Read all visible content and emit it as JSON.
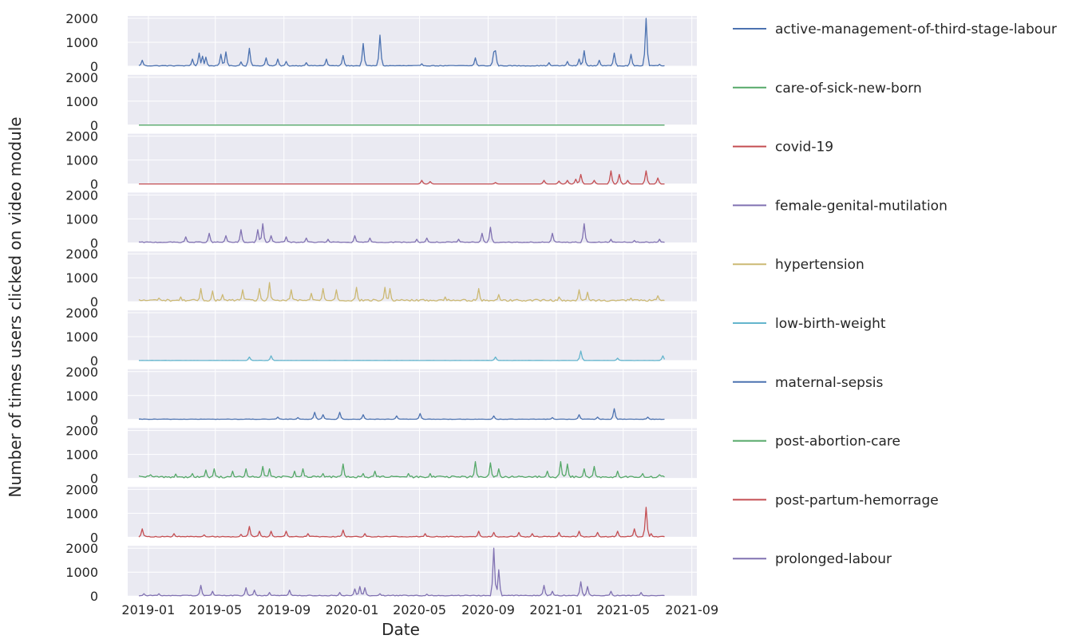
{
  "chart_data": {
    "type": "line",
    "layout": "small-multiples",
    "xlabel": "Date",
    "ylabel": "Number of times users clicked on video module",
    "xlim": [
      "2018-11-25",
      "2021-09-10"
    ],
    "ylim": [
      0,
      2100
    ],
    "y_ticks": [
      0,
      1000,
      2000
    ],
    "x_ticks": [
      "2019-01",
      "2019-05",
      "2019-09",
      "2020-01",
      "2020-05",
      "2020-09",
      "2021-01",
      "2021-05",
      "2021-09"
    ],
    "data_range": [
      "2018-12-15",
      "2021-07-15"
    ],
    "series": [
      {
        "name": "active-management-of-third-stage-labour",
        "color": "#4c72b0",
        "base": 20,
        "peaks": [
          [
            "2018-12-20",
            250
          ],
          [
            "2019-03-20",
            300
          ],
          [
            "2019-04-01",
            550
          ],
          [
            "2019-04-08",
            420
          ],
          [
            "2019-04-15",
            380
          ],
          [
            "2019-05-10",
            500
          ],
          [
            "2019-05-20",
            600
          ],
          [
            "2019-06-15",
            180
          ],
          [
            "2019-07-01",
            750
          ],
          [
            "2019-08-01",
            350
          ],
          [
            "2019-08-20",
            300
          ],
          [
            "2019-09-05",
            200
          ],
          [
            "2019-10-10",
            150
          ],
          [
            "2019-11-15",
            300
          ],
          [
            "2019-12-15",
            450
          ],
          [
            "2020-01-20",
            950
          ],
          [
            "2020-02-20",
            1300
          ],
          [
            "2020-05-05",
            100
          ],
          [
            "2020-08-10",
            350
          ],
          [
            "2020-09-10",
            600
          ],
          [
            "2020-09-15",
            650
          ],
          [
            "2020-12-20",
            150
          ],
          [
            "2021-01-20",
            200
          ],
          [
            "2021-02-10",
            300
          ],
          [
            "2021-02-20",
            650
          ],
          [
            "2021-03-20",
            250
          ],
          [
            "2021-04-15",
            550
          ],
          [
            "2021-05-15",
            500
          ],
          [
            "2021-06-10",
            2000
          ],
          [
            "2021-07-05",
            80
          ]
        ]
      },
      {
        "name": "care-of-sick-new-born",
        "color": "#55a868",
        "base": 0,
        "peaks": []
      },
      {
        "name": "covid-19",
        "color": "#c44e52",
        "base": 0,
        "active_from": "2020-04-20",
        "peaks": [
          [
            "2020-05-05",
            150
          ],
          [
            "2020-05-20",
            100
          ],
          [
            "2020-09-15",
            60
          ],
          [
            "2020-12-10",
            150
          ],
          [
            "2021-01-05",
            120
          ],
          [
            "2021-01-20",
            150
          ],
          [
            "2021-02-05",
            200
          ],
          [
            "2021-02-15",
            400
          ],
          [
            "2021-03-10",
            150
          ],
          [
            "2021-04-10",
            550
          ],
          [
            "2021-04-25",
            400
          ],
          [
            "2021-05-10",
            150
          ],
          [
            "2021-06-10",
            550
          ],
          [
            "2021-07-01",
            250
          ]
        ]
      },
      {
        "name": "female-genital-mutilation",
        "color": "#8172b2",
        "base": 25,
        "peaks": [
          [
            "2019-03-10",
            250
          ],
          [
            "2019-04-20",
            400
          ],
          [
            "2019-05-20",
            300
          ],
          [
            "2019-06-15",
            550
          ],
          [
            "2019-07-15",
            550
          ],
          [
            "2019-07-25",
            800
          ],
          [
            "2019-08-10",
            300
          ],
          [
            "2019-09-05",
            250
          ],
          [
            "2019-10-10",
            200
          ],
          [
            "2019-11-20",
            150
          ],
          [
            "2020-01-05",
            300
          ],
          [
            "2020-02-01",
            200
          ],
          [
            "2020-04-25",
            150
          ],
          [
            "2020-05-15",
            200
          ],
          [
            "2020-07-10",
            150
          ],
          [
            "2020-08-20",
            400
          ],
          [
            "2020-09-05",
            650
          ],
          [
            "2020-12-25",
            400
          ],
          [
            "2021-02-20",
            800
          ],
          [
            "2021-04-10",
            150
          ],
          [
            "2021-05-20",
            100
          ],
          [
            "2021-07-05",
            150
          ]
        ]
      },
      {
        "name": "hypertension",
        "color": "#ccb974",
        "base": 60,
        "peaks": [
          [
            "2019-01-20",
            150
          ],
          [
            "2019-03-01",
            200
          ],
          [
            "2019-04-05",
            550
          ],
          [
            "2019-04-25",
            450
          ],
          [
            "2019-05-15",
            300
          ],
          [
            "2019-06-20",
            500
          ],
          [
            "2019-07-20",
            550
          ],
          [
            "2019-08-05",
            800
          ],
          [
            "2019-09-15",
            500
          ],
          [
            "2019-10-20",
            350
          ],
          [
            "2019-11-10",
            550
          ],
          [
            "2019-12-05",
            500
          ],
          [
            "2020-01-10",
            600
          ],
          [
            "2020-03-01",
            600
          ],
          [
            "2020-03-10",
            550
          ],
          [
            "2020-06-15",
            200
          ],
          [
            "2020-08-15",
            550
          ],
          [
            "2020-09-20",
            300
          ],
          [
            "2021-01-05",
            200
          ],
          [
            "2021-02-10",
            500
          ],
          [
            "2021-02-25",
            400
          ],
          [
            "2021-05-15",
            150
          ],
          [
            "2021-07-01",
            250
          ]
        ]
      },
      {
        "name": "low-birth-weight",
        "color": "#64b5cd",
        "base": 5,
        "peaks": [
          [
            "2019-07-01",
            150
          ],
          [
            "2019-08-10",
            200
          ],
          [
            "2020-09-15",
            150
          ],
          [
            "2021-02-15",
            400
          ],
          [
            "2021-04-20",
            100
          ],
          [
            "2021-07-10",
            200
          ]
        ]
      },
      {
        "name": "maternal-sepsis",
        "color": "#4c72b0",
        "base": 10,
        "peaks": [
          [
            "2019-08-20",
            100
          ],
          [
            "2019-09-25",
            80
          ],
          [
            "2019-10-25",
            300
          ],
          [
            "2019-11-10",
            200
          ],
          [
            "2019-12-10",
            300
          ],
          [
            "2020-01-20",
            200
          ],
          [
            "2020-03-20",
            150
          ],
          [
            "2020-05-01",
            250
          ],
          [
            "2020-09-10",
            150
          ],
          [
            "2020-12-25",
            80
          ],
          [
            "2021-02-10",
            200
          ],
          [
            "2021-03-15",
            100
          ],
          [
            "2021-04-15",
            450
          ],
          [
            "2021-06-15",
            100
          ]
        ]
      },
      {
        "name": "post-abortion-care",
        "color": "#55a868",
        "base": 60,
        "peaks": [
          [
            "2019-01-05",
            150
          ],
          [
            "2019-02-20",
            180
          ],
          [
            "2019-03-20",
            200
          ],
          [
            "2019-04-15",
            350
          ],
          [
            "2019-04-30",
            400
          ],
          [
            "2019-06-01",
            300
          ],
          [
            "2019-06-25",
            400
          ],
          [
            "2019-07-25",
            500
          ],
          [
            "2019-08-05",
            400
          ],
          [
            "2019-09-20",
            300
          ],
          [
            "2019-10-05",
            400
          ],
          [
            "2019-11-10",
            200
          ],
          [
            "2019-12-15",
            600
          ],
          [
            "2020-01-20",
            200
          ],
          [
            "2020-02-10",
            300
          ],
          [
            "2020-04-10",
            200
          ],
          [
            "2020-05-20",
            200
          ],
          [
            "2020-08-10",
            700
          ],
          [
            "2020-09-05",
            650
          ],
          [
            "2020-09-20",
            400
          ],
          [
            "2020-12-15",
            300
          ],
          [
            "2021-01-10",
            700
          ],
          [
            "2021-01-20",
            600
          ],
          [
            "2021-02-20",
            400
          ],
          [
            "2021-03-10",
            500
          ],
          [
            "2021-04-20",
            300
          ],
          [
            "2021-06-05",
            200
          ],
          [
            "2021-07-05",
            150
          ]
        ]
      },
      {
        "name": "post-partum-hemorrage",
        "color": "#c44e52",
        "base": 25,
        "peaks": [
          [
            "2018-12-20",
            350
          ],
          [
            "2019-02-15",
            150
          ],
          [
            "2019-04-10",
            100
          ],
          [
            "2019-06-15",
            120
          ],
          [
            "2019-07-01",
            450
          ],
          [
            "2019-07-20",
            250
          ],
          [
            "2019-08-10",
            250
          ],
          [
            "2019-09-05",
            250
          ],
          [
            "2019-10-15",
            150
          ],
          [
            "2019-12-15",
            300
          ],
          [
            "2020-01-25",
            150
          ],
          [
            "2020-05-10",
            150
          ],
          [
            "2020-08-15",
            250
          ],
          [
            "2020-09-10",
            200
          ],
          [
            "2020-10-25",
            200
          ],
          [
            "2020-11-20",
            150
          ],
          [
            "2021-01-05",
            200
          ],
          [
            "2021-02-10",
            250
          ],
          [
            "2021-03-15",
            200
          ],
          [
            "2021-04-20",
            250
          ],
          [
            "2021-05-20",
            350
          ],
          [
            "2021-06-10",
            1250
          ],
          [
            "2021-06-20",
            150
          ]
        ]
      },
      {
        "name": "prolonged-labour",
        "color": "#8172b2",
        "base": 25,
        "peaks": [
          [
            "2018-12-25",
            100
          ],
          [
            "2019-01-20",
            100
          ],
          [
            "2019-04-05",
            450
          ],
          [
            "2019-04-25",
            200
          ],
          [
            "2019-06-25",
            350
          ],
          [
            "2019-07-10",
            250
          ],
          [
            "2019-08-05",
            150
          ],
          [
            "2019-09-10",
            250
          ],
          [
            "2019-12-10",
            150
          ],
          [
            "2020-01-05",
            300
          ],
          [
            "2020-01-15",
            400
          ],
          [
            "2020-01-25",
            350
          ],
          [
            "2020-02-20",
            100
          ],
          [
            "2020-05-15",
            80
          ],
          [
            "2020-09-10",
            2000
          ],
          [
            "2020-09-20",
            1100
          ],
          [
            "2020-12-10",
            450
          ],
          [
            "2020-12-25",
            200
          ],
          [
            "2021-02-15",
            600
          ],
          [
            "2021-02-25",
            400
          ],
          [
            "2021-04-10",
            200
          ],
          [
            "2021-06-01",
            150
          ]
        ]
      }
    ]
  }
}
